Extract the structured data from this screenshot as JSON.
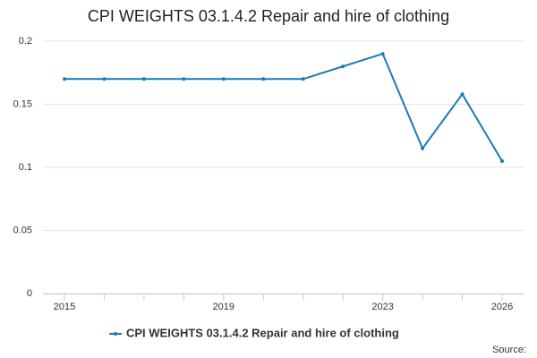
{
  "chart_data": {
    "type": "line",
    "title": "CPI WEIGHTS 03.1.4.2 Repair and hire of clothing",
    "x": [
      2015,
      2016,
      2017,
      2018,
      2019,
      2020,
      2021,
      2022,
      2023,
      2024,
      2025,
      2026
    ],
    "series": [
      {
        "name": "CPI WEIGHTS 03.1.4.2 Repair and hire of clothing",
        "color": "#1a7ab5",
        "values": [
          0.17,
          0.17,
          0.17,
          0.17,
          0.17,
          0.17,
          0.17,
          0.18,
          0.19,
          0.115,
          0.158,
          0.105
        ]
      }
    ],
    "xlim": [
      2014.46,
      2026.54
    ],
    "xticks": [
      2015,
      2019,
      2023,
      2026
    ],
    "ylim": [
      0,
      0.2
    ],
    "yticks": [
      0,
      0.05,
      0.1,
      0.15,
      0.2
    ],
    "grid": true,
    "source": "Source:"
  }
}
